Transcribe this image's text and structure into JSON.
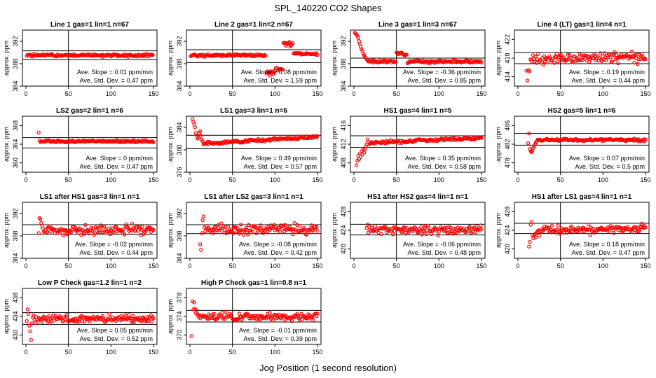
{
  "title": "SPL_140220  CO2 Shapes",
  "xlabel": "Jog Position (1 second resolution)",
  "ylabel": "approx. ppm",
  "colors": {
    "points": "#ff0000",
    "axes": "#000000"
  },
  "chart_data": [
    {
      "type": "scatter",
      "title": "Line 1 gas=1 lin=1 n=67",
      "xlim": [
        0,
        150
      ],
      "ylim": [
        384,
        394
      ],
      "xticks": [
        0,
        50,
        100,
        150
      ],
      "yticks": [
        384,
        388,
        392
      ],
      "vline": 50,
      "hlines": [
        388.7,
        390.3
      ],
      "slope": "Ave. Slope = 0.01  ppm/min",
      "std": "Ave. Std. Dev. = 0.47  ppm",
      "profile": {
        "start": 1,
        "end": 150,
        "init": [],
        "pre": [
          389.4
        ],
        "base": 389.5,
        "slope": 0,
        "noise": 0.12,
        "seed": 1
      }
    },
    {
      "type": "scatter",
      "title": "Line 2 gas=1 lin=2 n=67",
      "xlim": [
        0,
        150
      ],
      "ylim": [
        384,
        394
      ],
      "xticks": [
        0,
        50,
        100,
        150
      ],
      "yticks": [
        384,
        388,
        392
      ],
      "vline": 50,
      "hlines": [
        388.2,
        390.5
      ],
      "slope": "Ave. Slope = 0.08  ppm/min",
      "std": "Ave. Std. Dev. = 1.59  ppm",
      "profile": {
        "start": 1,
        "end": 150,
        "init": [],
        "pre": [],
        "base": 389.5,
        "slope": 0,
        "noise": 0.1,
        "seed": 2,
        "segments": [
          [
            90,
            101,
            386.3,
            0.25
          ],
          [
            101,
            110,
            387.0,
            0.2
          ],
          [
            110,
            122,
            391.5,
            0.3
          ],
          [
            122,
            150,
            389.8,
            0.1
          ]
        ]
      }
    },
    {
      "type": "scatter",
      "title": "Line 3 gas=1 lin=3 n=67",
      "xlim": [
        0,
        150
      ],
      "ylim": [
        384,
        394
      ],
      "xticks": [
        0,
        50,
        100,
        150
      ],
      "yticks": [
        384,
        388,
        392
      ],
      "vline": 50,
      "hlines": [
        387.3,
        389.0
      ],
      "slope": "Ave. Slope = -0.36  ppm/min",
      "std": "Ave. Std. Dev. = 0.85  ppm",
      "profile": {
        "start": 1,
        "end": 150,
        "init": [
          393.5,
          393.4,
          393.2,
          393,
          392.6,
          392,
          391.5,
          391,
          390.6,
          390.3,
          389.8,
          389.5,
          389.2,
          389,
          388.8,
          388.6
        ],
        "pre": [],
        "base": 388.4,
        "slope": 0,
        "noise": 0.12,
        "seed": 3,
        "segments": [
          [
            50,
            63,
            389.8,
            0.15
          ]
        ]
      }
    },
    {
      "type": "scatter",
      "title": "Line 4 (LT) gas=1 lin=4 n=1",
      "xlim": [
        0,
        150
      ],
      "ylim": [
        412,
        424
      ],
      "xticks": [
        0,
        50,
        100,
        150
      ],
      "yticks": [
        414,
        418,
        422
      ],
      "vline": 50,
      "hlines": [
        416.8,
        419.2
      ],
      "slope": "Ave. Slope = 0.19  ppm/min",
      "std": "Ave. Std. Dev. = 0.44  ppm",
      "profile": {
        "start": 10,
        "end": 150,
        "init": [],
        "pre": [
          415.3,
          413.2,
          415.4,
          415.2
        ],
        "base": 417.8,
        "slope": 0.003,
        "noise": 0.55,
        "seed": 4
      }
    },
    {
      "type": "scatter",
      "title": "LS2 gas=2 lin=1 n=6",
      "xlim": [
        0,
        150
      ],
      "ylim": [
        358,
        370
      ],
      "xticks": [
        0,
        50,
        100,
        150
      ],
      "yticks": [
        360,
        364,
        368
      ],
      "vline": 50,
      "hlines": [
        363.2,
        365.4
      ],
      "slope": "Ave. Slope = 0  ppm/min",
      "std": "Ave. Std. Dev. = 0.47  ppm",
      "profile": {
        "start": 15,
        "end": 150,
        "init": [
          366.5
        ],
        "pre": [],
        "base": 364.6,
        "slope": 0,
        "noise": 0.12,
        "seed": 5
      }
    },
    {
      "type": "scatter",
      "title": "LS1 gas=3 lin=1 n=6",
      "xlim": [
        0,
        150
      ],
      "ylim": [
        376,
        386
      ],
      "xticks": [
        0,
        50,
        100,
        150
      ],
      "yticks": [
        376,
        380,
        384
      ],
      "vline": 50,
      "hlines": [
        380.2,
        382.6
      ],
      "slope": "Ave. Slope = 0.49  ppm/min",
      "std": "Ave. Std. Dev. = 0.57  ppm",
      "profile": {
        "start": 3,
        "end": 150,
        "init": [
          385.5,
          385,
          384.5,
          384,
          383,
          382.5,
          382,
          382.2,
          383,
          383.3,
          382.5,
          381.8,
          381.5,
          381
        ],
        "pre": [],
        "base": 381.0,
        "slope": 0.009,
        "noise": 0.12,
        "seed": 6
      }
    },
    {
      "type": "scatter",
      "title": "HS1 gas=4 lin=1 n=5",
      "xlim": [
        0,
        150
      ],
      "ylim": [
        406,
        418
      ],
      "xticks": [
        0,
        50,
        100,
        150
      ],
      "yticks": [
        408,
        412,
        416
      ],
      "vline": 50,
      "hlines": [
        411.3,
        413.8
      ],
      "slope": "Ave. Slope = 0.35  ppm/min",
      "std": "Ave. Std. Dev. = 0.58  ppm",
      "profile": {
        "start": 3,
        "end": 150,
        "init": [
          407.5,
          408.5,
          409.5,
          408.8,
          410,
          409.3,
          410.5,
          409.8,
          410.8,
          410.2,
          411,
          411.5,
          412,
          413,
          412.5,
          412
        ],
        "pre": [],
        "base": 412.2,
        "slope": 0.008,
        "noise": 0.15,
        "seed": 7
      }
    },
    {
      "type": "scatter",
      "title": "HS2 gas=5 lin=1 n=6",
      "xlim": [
        0,
        150
      ],
      "ylim": [
        476,
        488
      ],
      "xticks": [
        0,
        50,
        100,
        150
      ],
      "yticks": [
        478,
        482,
        486
      ],
      "vline": 50,
      "hlines": [
        481.8,
        484.3
      ],
      "slope": "Ave. Slope = 0.07  ppm/min",
      "std": "Ave. Std. Dev. = 0.5  ppm",
      "profile": {
        "start": 12,
        "end": 150,
        "init": [
          482.2,
          484.3,
          481,
          480.5,
          480.3,
          480.6,
          481.2,
          481.6,
          482,
          482.4,
          482.6
        ],
        "pre": [],
        "base": 482.9,
        "slope": 0,
        "noise": 0.12,
        "seed": 8
      }
    },
    {
      "type": "scatter",
      "title": "LS1 after HS1 gas=3 lin=1 n=1",
      "xlim": [
        0,
        150
      ],
      "ylim": [
        384,
        394
      ],
      "xticks": [
        0,
        50,
        100,
        150
      ],
      "yticks": [
        384,
        388,
        392
      ],
      "vline": 50,
      "hlines": [
        388.3,
        390.0
      ],
      "slope": "Ave. Slope = -0.02  ppm/min",
      "std": "Ave. Std. Dev. = 0.44  ppm",
      "profile": {
        "start": 15,
        "end": 150,
        "init": [
          388.5,
          391.2,
          391,
          390.3,
          389.8,
          389.3,
          388.8,
          388.6
        ],
        "pre": [],
        "base": 389.0,
        "slope": 0,
        "noise": 0.45,
        "seed": 9
      }
    },
    {
      "type": "scatter",
      "title": "LS1 after LS2 gas=3 lin=1 n=1",
      "xlim": [
        0,
        150
      ],
      "ylim": [
        384,
        394
      ],
      "xticks": [
        0,
        50,
        100,
        150
      ],
      "yticks": [
        384,
        388,
        392
      ],
      "vline": 50,
      "hlines": [
        388.4,
        390.0
      ],
      "slope": "Ave. Slope = -0.08  ppm/min",
      "std": "Ave. Std. Dev. = 0.42  ppm",
      "profile": {
        "start": 12,
        "end": 150,
        "init": [
          386.5,
          385.5,
          388.5,
          390.8,
          391.5,
          389.5,
          388.8,
          389.8
        ],
        "pre": [],
        "base": 389.2,
        "slope": 0,
        "noise": 0.45,
        "seed": 10
      }
    },
    {
      "type": "scatter",
      "title": "HS1 after HS2 gas=4 lin=1 n=1",
      "xlim": [
        0,
        150
      ],
      "ylim": [
        418,
        430
      ],
      "xticks": [
        0,
        50,
        100,
        150
      ],
      "yticks": [
        420,
        424,
        428
      ],
      "vline": 50,
      "hlines": [
        423.0,
        425.3
      ],
      "slope": "Ave. Slope = -0.06  ppm/min",
      "std": "Ave. Std. Dev. = 0.48  ppm",
      "profile": {
        "start": 15,
        "end": 150,
        "init": [
          424.5,
          425.2,
          423.5,
          424.8,
          424.2,
          423.8,
          424.6
        ],
        "pre": [],
        "base": 424.1,
        "slope": 0,
        "noise": 0.45,
        "seed": 11
      }
    },
    {
      "type": "scatter",
      "title": "HS1 after LS1 gas=4 lin=1 n=1",
      "xlim": [
        0,
        150
      ],
      "ylim": [
        418,
        430
      ],
      "xticks": [
        0,
        50,
        100,
        150
      ],
      "yticks": [
        420,
        424,
        428
      ],
      "vline": 50,
      "hlines": [
        423.3,
        425.5
      ],
      "slope": "Ave. Slope = 0.18  ppm/min",
      "std": "Ave. Std. Dev. = 0.47  ppm",
      "profile": {
        "start": 13,
        "end": 150,
        "init": [
          420.5,
          421.5,
          425.2,
          425.8,
          423,
          422.3,
          422.8,
          423.2,
          422.5,
          423.5,
          423.8,
          424,
          422.8,
          423.9
        ],
        "pre": [],
        "base": 424.0,
        "slope": 0.003,
        "noise": 0.45,
        "seed": 12
      }
    },
    {
      "type": "scatter",
      "title": "Low P Check gas=1.2 lin=1 n=2",
      "xlim": [
        0,
        150
      ],
      "ylim": [
        428,
        440
      ],
      "xticks": [
        0,
        50,
        100,
        150
      ],
      "yticks": [
        430,
        434,
        438
      ],
      "vline": 50,
      "hlines": [
        432.3,
        434.8
      ],
      "slope": "Ave. Slope = 0.05  ppm/min",
      "std": "Ave. Std. Dev. = 0.52  ppm",
      "profile": {
        "start": 1,
        "end": 150,
        "init": [
          433,
          435.5,
          434.5,
          432,
          430.8,
          429,
          432.5,
          433.8,
          434.2,
          433.3,
          432.6
        ],
        "pre": [],
        "base": 433.5,
        "slope": 0,
        "noise": 0.4,
        "seed": 13
      }
    },
    {
      "type": "scatter",
      "title": "High P Check gas=1 lin=0.8 n=1",
      "xlim": [
        0,
        150
      ],
      "ylim": [
        368,
        380
      ],
      "xticks": [
        0,
        50,
        100,
        150
      ],
      "yticks": [
        370,
        374,
        378
      ],
      "vline": 50,
      "hlines": [
        372.8,
        375.3
      ],
      "slope": "Ave. Slope = -0.01  ppm/min",
      "std": "Ave. Std. Dev. = 0.39  ppm",
      "profile": {
        "start": 2,
        "end": 150,
        "init": [
          369.8,
          377.2,
          375.5,
          377,
          375.6,
          374.7,
          375.3,
          374.5,
          373.9,
          374.2,
          373.6
        ],
        "pre": [],
        "base": 373.9,
        "slope": 0,
        "noise": 0.4,
        "seed": 14
      }
    }
  ]
}
